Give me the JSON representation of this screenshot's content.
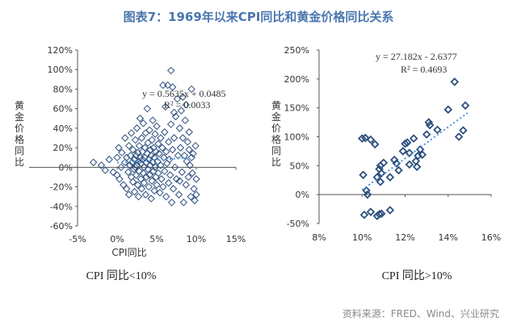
{
  "header": {
    "title": "图表7：1969年以来CPI同比和黄金价格同比关系"
  },
  "source": "资料来源：FRED、Wind、兴业研究",
  "chart_data": [
    {
      "type": "scatter",
      "title": "",
      "xlabel": "CPI同比",
      "ylabel": "黄金价格同比",
      "caption": "CPI 同比<10%",
      "xlim": [
        -0.05,
        0.15
      ],
      "ylim": [
        -0.6,
        1.2
      ],
      "x_ticks": [
        "-5%",
        "0%",
        "5%",
        "10%",
        "15%"
      ],
      "y_ticks": [
        "-60%",
        "-40%",
        "-20%",
        "0%",
        "20%",
        "40%",
        "60%",
        "80%",
        "100%",
        "120%"
      ],
      "trendline": {
        "equation": "y = 0.5635x + 0.0485",
        "r2": "R² = 0.0033",
        "slope": 0.5635,
        "intercept": 0.0485,
        "x_range": [
          0.0,
          0.09
        ]
      },
      "colors": {
        "marker": "#2e4f7e",
        "trend": "#4a90d9"
      },
      "points": [
        [
          -0.03,
          0.05
        ],
        [
          -0.02,
          0.02
        ],
        [
          -0.015,
          -0.03
        ],
        [
          -0.01,
          0.08
        ],
        [
          -0.005,
          -0.05
        ],
        [
          0.0,
          0.1
        ],
        [
          0.0,
          -0.08
        ],
        [
          0.002,
          0.2
        ],
        [
          0.003,
          -0.12
        ],
        [
          0.005,
          0.0
        ],
        [
          0.006,
          0.15
        ],
        [
          0.008,
          -0.18
        ],
        [
          0.01,
          0.05
        ],
        [
          0.01,
          0.3
        ],
        [
          0.012,
          -0.22
        ],
        [
          0.012,
          0.1
        ],
        [
          0.014,
          -0.05
        ],
        [
          0.015,
          0.22
        ],
        [
          0.015,
          -0.28
        ],
        [
          0.016,
          0.02
        ],
        [
          0.017,
          0.12
        ],
        [
          0.018,
          -0.1
        ],
        [
          0.018,
          0.35
        ],
        [
          0.019,
          0.05
        ],
        [
          0.02,
          -0.15
        ],
        [
          0.02,
          0.18
        ],
        [
          0.021,
          -0.02
        ],
        [
          0.022,
          0.08
        ],
        [
          0.022,
          -0.25
        ],
        [
          0.023,
          0.28
        ],
        [
          0.023,
          0.0
        ],
        [
          0.024,
          0.12
        ],
        [
          0.024,
          -0.08
        ],
        [
          0.025,
          0.4
        ],
        [
          0.025,
          0.02
        ],
        [
          0.026,
          -0.18
        ],
        [
          0.026,
          0.15
        ],
        [
          0.027,
          0.06
        ],
        [
          0.027,
          -0.3
        ],
        [
          0.028,
          0.22
        ],
        [
          0.028,
          -0.04
        ],
        [
          0.029,
          0.1
        ],
        [
          0.029,
          0.5
        ],
        [
          0.03,
          -0.12
        ],
        [
          0.03,
          0.04
        ],
        [
          0.031,
          0.3
        ],
        [
          0.031,
          -0.22
        ],
        [
          0.032,
          0.08
        ],
        [
          0.032,
          0.16
        ],
        [
          0.033,
          -0.06
        ],
        [
          0.033,
          0.45
        ],
        [
          0.034,
          0.0
        ],
        [
          0.034,
          -0.16
        ],
        [
          0.035,
          0.2
        ],
        [
          0.035,
          0.1
        ],
        [
          0.036,
          -0.28
        ],
        [
          0.036,
          0.35
        ],
        [
          0.037,
          0.05
        ],
        [
          0.037,
          -0.1
        ],
        [
          0.038,
          0.6
        ],
        [
          0.038,
          0.14
        ],
        [
          0.039,
          -0.02
        ],
        [
          0.039,
          0.25
        ],
        [
          0.04,
          -0.2
        ],
        [
          0.04,
          0.08
        ],
        [
          0.041,
          0.38
        ],
        [
          0.041,
          -0.08
        ],
        [
          0.042,
          0.18
        ],
        [
          0.042,
          0.02
        ],
        [
          0.043,
          -0.32
        ],
        [
          0.043,
          0.12
        ],
        [
          0.044,
          0.28
        ],
        [
          0.044,
          -0.14
        ],
        [
          0.045,
          0.05
        ],
        [
          0.045,
          0.48
        ],
        [
          0.046,
          -0.04
        ],
        [
          0.046,
          0.2
        ],
        [
          0.047,
          -0.24
        ],
        [
          0.047,
          0.1
        ],
        [
          0.048,
          0.34
        ],
        [
          0.048,
          0.0
        ],
        [
          0.049,
          -0.1
        ],
        [
          0.049,
          0.16
        ],
        [
          0.05,
          0.42
        ],
        [
          0.05,
          -0.18
        ],
        [
          0.051,
          0.06
        ],
        [
          0.052,
          0.24
        ],
        [
          0.052,
          -0.06
        ],
        [
          0.053,
          0.14
        ],
        [
          0.054,
          -0.26
        ],
        [
          0.055,
          0.3
        ],
        [
          0.055,
          0.02
        ],
        [
          0.056,
          -0.12
        ],
        [
          0.057,
          0.2
        ],
        [
          0.058,
          0.84
        ],
        [
          0.058,
          -0.2
        ],
        [
          0.059,
          0.1
        ],
        [
          0.06,
          0.36
        ],
        [
          0.06,
          -0.04
        ],
        [
          0.061,
          0.62
        ],
        [
          0.062,
          -0.3
        ],
        [
          0.062,
          0.16
        ],
        [
          0.063,
          0.04
        ],
        [
          0.064,
          0.84
        ],
        [
          0.065,
          -0.16
        ],
        [
          0.065,
          0.26
        ],
        [
          0.066,
          0.08
        ],
        [
          0.067,
          -0.08
        ],
        [
          0.068,
          0.99
        ],
        [
          0.068,
          0.44
        ],
        [
          0.069,
          -0.36
        ],
        [
          0.07,
          0.18
        ],
        [
          0.07,
          0.82
        ],
        [
          0.071,
          -0.22
        ],
        [
          0.072,
          0.3
        ],
        [
          0.073,
          0.0
        ],
        [
          0.074,
          0.52
        ],
        [
          0.075,
          -0.12
        ],
        [
          0.076,
          0.7
        ],
        [
          0.077,
          0.12
        ],
        [
          0.078,
          -0.28
        ],
        [
          0.079,
          0.4
        ],
        [
          0.08,
          0.2
        ],
        [
          0.081,
          0.58
        ],
        [
          0.082,
          -0.05
        ],
        [
          0.083,
          0.3
        ],
        [
          0.084,
          -0.36
        ],
        [
          0.085,
          0.12
        ],
        [
          0.086,
          0.48
        ],
        [
          0.087,
          -0.18
        ],
        [
          0.088,
          0.06
        ],
        [
          0.089,
          0.26
        ],
        [
          0.09,
          -0.1
        ],
        [
          0.091,
          0.18
        ],
        [
          0.092,
          0.02
        ],
        [
          0.093,
          -0.3
        ],
        [
          0.094,
          0.1
        ],
        [
          0.095,
          -0.06
        ],
        [
          0.096,
          0.14
        ],
        [
          0.097,
          -0.22
        ],
        [
          0.098,
          -0.34
        ],
        [
          0.099,
          0.22
        ],
        [
          0.1,
          -0.12
        ],
        [
          0.083,
          0.72
        ],
        [
          0.087,
          0.64
        ],
        [
          0.079,
          -0.14
        ],
        [
          0.072,
          0.56
        ],
        [
          0.091,
          0.36
        ],
        [
          0.1,
          -0.28
        ],
        [
          0.094,
          0.8
        ]
      ]
    },
    {
      "type": "scatter",
      "title": "",
      "xlabel": "",
      "ylabel": "黄金价格同比",
      "caption": "CPI 同比>10%",
      "xlim": [
        0.08,
        0.16
      ],
      "ylim": [
        -0.5,
        2.5
      ],
      "x_ticks": [
        "8%",
        "10%",
        "12%",
        "14%",
        "16%"
      ],
      "y_ticks": [
        "-50%",
        "0%",
        "50%",
        "100%",
        "150%",
        "200%",
        "250%"
      ],
      "trendline": {
        "equation": "y = 27.182x - 2.6377",
        "r2": "R² = 0.4693",
        "slope": 27.182,
        "intercept": -2.6377,
        "x_range": [
          0.1,
          0.149
        ]
      },
      "colors": {
        "marker": "#2e4f7e",
        "trend": "#4a90d9"
      },
      "points": [
        [
          0.1,
          0.97
        ],
        [
          0.1015,
          0.98
        ],
        [
          0.104,
          0.95
        ],
        [
          0.106,
          0.87
        ],
        [
          0.1005,
          0.34
        ],
        [
          0.102,
          0.07
        ],
        [
          0.1025,
          0.0
        ],
        [
          0.104,
          -0.3
        ],
        [
          0.101,
          -0.35
        ],
        [
          0.107,
          -0.37
        ],
        [
          0.108,
          -0.34
        ],
        [
          0.109,
          -0.33
        ],
        [
          0.107,
          0.3
        ],
        [
          0.108,
          0.44
        ],
        [
          0.1085,
          0.5
        ],
        [
          0.109,
          0.37
        ],
        [
          0.11,
          0.55
        ],
        [
          0.1085,
          0.22
        ],
        [
          0.113,
          0.3
        ],
        [
          0.113,
          -0.27
        ],
        [
          0.115,
          0.6
        ],
        [
          0.116,
          0.54
        ],
        [
          0.117,
          0.42
        ],
        [
          0.119,
          0.75
        ],
        [
          0.12,
          0.88
        ],
        [
          0.121,
          0.9
        ],
        [
          0.122,
          0.72
        ],
        [
          0.122,
          0.52
        ],
        [
          0.124,
          0.97
        ],
        [
          0.125,
          0.58
        ],
        [
          0.126,
          0.67
        ],
        [
          0.1255,
          0.48
        ],
        [
          0.127,
          0.78
        ],
        [
          0.128,
          0.69
        ],
        [
          0.13,
          1.04
        ],
        [
          0.131,
          1.25
        ],
        [
          0.1315,
          1.2
        ],
        [
          0.135,
          1.12
        ],
        [
          0.14,
          1.47
        ],
        [
          0.143,
          1.95
        ],
        [
          0.145,
          1.0
        ],
        [
          0.147,
          1.11
        ],
        [
          0.148,
          1.54
        ]
      ]
    }
  ]
}
